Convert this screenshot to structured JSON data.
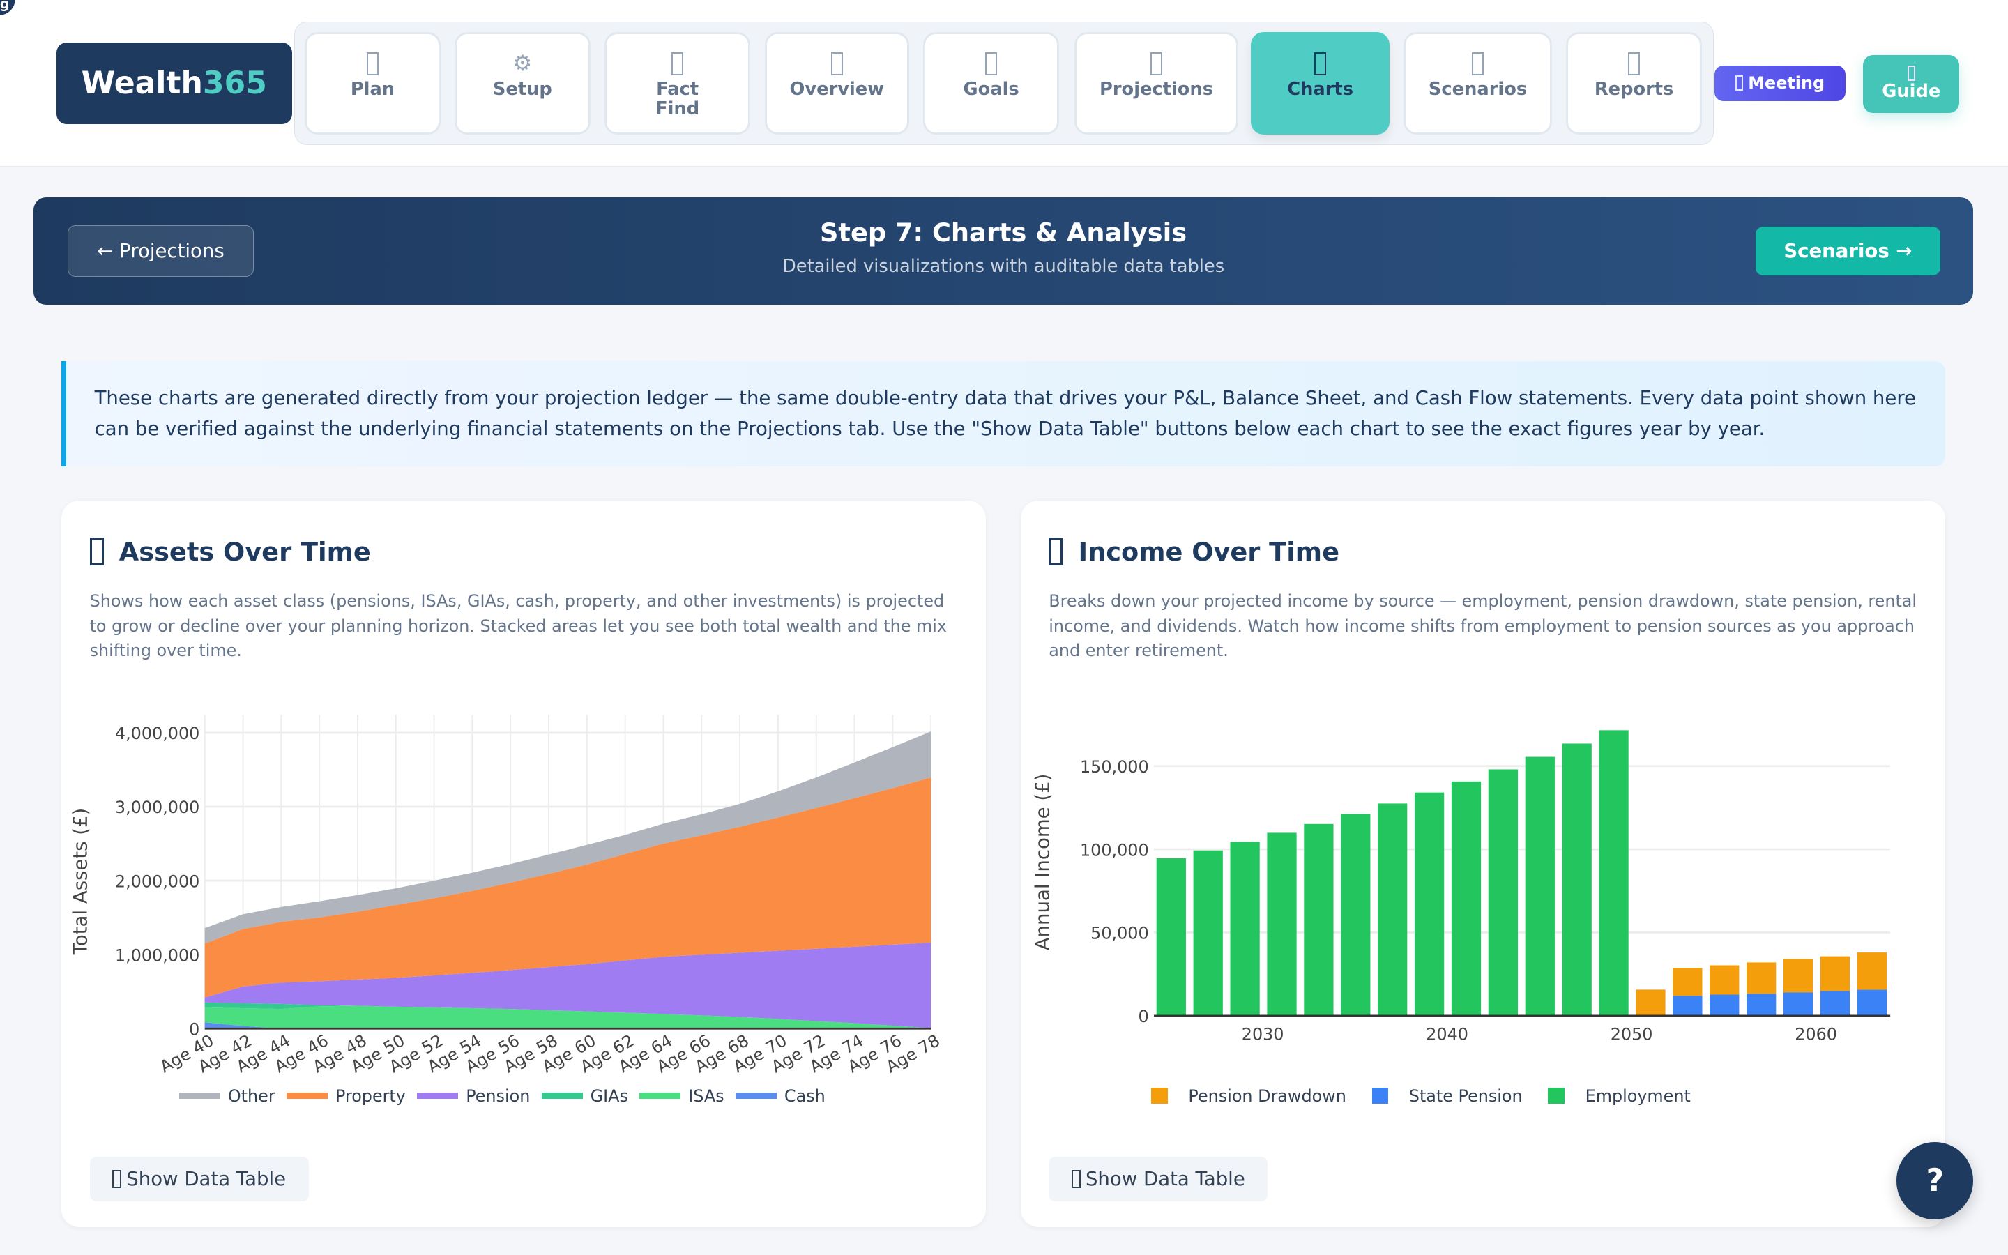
{
  "app": {
    "logo_main": "Wealth",
    "logo_accent": "365",
    "corner_badge": "g"
  },
  "nav": {
    "tabs": [
      {
        "label": "Plan",
        "icon": "missing-glyph"
      },
      {
        "label": "Setup",
        "icon": "gear"
      },
      {
        "label": "Fact Find",
        "icon": "missing-glyph"
      },
      {
        "label": "Overview",
        "icon": "missing-glyph"
      },
      {
        "label": "Goals",
        "icon": "missing-glyph"
      },
      {
        "label": "Projections",
        "icon": "missing-glyph"
      },
      {
        "label": "Charts",
        "icon": "missing-glyph",
        "active": true
      },
      {
        "label": "Scenarios",
        "icon": "missing-glyph"
      },
      {
        "label": "Reports",
        "icon": "missing-glyph"
      }
    ],
    "meeting_label": "Meeting",
    "guide_label": "Guide",
    "gear_glyph": "⚙"
  },
  "banner": {
    "back_label": "← Projections",
    "title": "Step 7: Charts & Analysis",
    "subtitle": "Detailed visualizations with auditable data tables",
    "next_label": "Scenarios →"
  },
  "info": "These charts are generated directly from your projection ledger — the same double-entry data that drives your P&L, Balance Sheet, and Cash Flow statements. Every data point shown here can be verified against the underlying financial statements on the Projections tab. Use the \"Show Data Table\" buttons below each chart to see the exact figures year by year.",
  "cards": {
    "assets": {
      "title": "Assets Over Time",
      "description": "Shows how each asset class (pensions, ISAs, GIAs, cash, property, and other investments) is projected to grow or decline over your planning horizon. Stacked areas let you see both total wealth and the mix shifting over time.",
      "button": "Show Data Table"
    },
    "income": {
      "title": "Income Over Time",
      "description": "Breaks down your projected income by source — employment, pension drawdown, state pension, rental income, and dividends. Watch how income shifts from employment to pension sources as you approach and enter retirement.",
      "button": "Show Data Table"
    }
  },
  "help_label": "?",
  "chart_data": [
    {
      "type": "area",
      "stacked": true,
      "ylabel": "Total Assets (£)",
      "ylim": [
        0,
        4000000
      ],
      "yticks": [
        "0",
        "1,000,000",
        "2,000,000",
        "3,000,000",
        "4,000,000"
      ],
      "grid": true,
      "legend": "bottom",
      "categories": [
        "Age 40",
        "Age 42",
        "Age 44",
        "Age 46",
        "Age 48",
        "Age 50",
        "Age 52",
        "Age 54",
        "Age 56",
        "Age 58",
        "Age 60",
        "Age 62",
        "Age 64",
        "Age 66",
        "Age 68",
        "Age 70",
        "Age 72",
        "Age 74",
        "Age 76",
        "Age 78"
      ],
      "series": [
        {
          "name": "Cash",
          "color": "#5b8def",
          "values": [
            85000,
            35000,
            0,
            0,
            0,
            0,
            0,
            0,
            0,
            0,
            0,
            0,
            0,
            0,
            0,
            0,
            0,
            0,
            0,
            0
          ]
        },
        {
          "name": "ISAs",
          "color": "#4ade80",
          "values": [
            201000,
            241000,
            265000,
            300000,
            309000,
            296000,
            286000,
            276000,
            265000,
            249000,
            232000,
            215000,
            198000,
            178000,
            158000,
            131000,
            101000,
            74000,
            40000,
            7000
          ]
        },
        {
          "name": "GIAs",
          "color": "#34c98e",
          "values": [
            67000,
            67000,
            68000,
            15000,
            0,
            0,
            0,
            0,
            0,
            0,
            0,
            0,
            0,
            0,
            0,
            0,
            0,
            0,
            0,
            0
          ]
        },
        {
          "name": "Pension",
          "color": "#a07cf2",
          "values": [
            67000,
            225000,
            289000,
            324000,
            353000,
            390000,
            433000,
            477000,
            525000,
            581000,
            639000,
            706000,
            773000,
            820000,
            867000,
            921000,
            978000,
            1032000,
            1093000,
            1156000
          ]
        },
        {
          "name": "Property",
          "color": "#fa8c44",
          "values": [
            730000,
            777000,
            820000,
            864000,
            918000,
            985000,
            1042000,
            1109000,
            1183000,
            1261000,
            1347000,
            1439000,
            1530000,
            1614000,
            1704000,
            1802000,
            1903000,
            2010000,
            2117000,
            2232000
          ]
        },
        {
          "name": "Other",
          "color": "#b0b4bd",
          "values": [
            208000,
            201000,
            202000,
            218000,
            225000,
            225000,
            239000,
            246000,
            252000,
            262000,
            266000,
            258000,
            269000,
            285000,
            310000,
            353000,
            413000,
            481000,
            555000,
            622000
          ]
        }
      ],
      "legend_order": [
        "Other",
        "Property",
        "Pension",
        "GIAs",
        "ISAs",
        "Cash"
      ]
    },
    {
      "type": "bar",
      "stacked": true,
      "ylabel": "Annual Income (£)",
      "ylim": [
        0,
        175000
      ],
      "yticks": [
        0,
        50000,
        100000,
        150000
      ],
      "ytick_labels": [
        "0",
        "50,000",
        "100,000",
        "150,000"
      ],
      "xticks": [
        2030,
        2040,
        2050,
        2060
      ],
      "xlim": [
        2024,
        2064
      ],
      "grid": true,
      "legend": "bottom",
      "x": [
        2025,
        2027,
        2029,
        2031,
        2033,
        2035,
        2037,
        2039,
        2041,
        2043,
        2045,
        2047,
        2049,
        2051,
        2053,
        2055,
        2057,
        2059,
        2061,
        2063
      ],
      "series": [
        {
          "name": "State Pension",
          "color": "#3b82f6",
          "values": [
            0,
            0,
            0,
            0,
            0,
            0,
            0,
            0,
            0,
            0,
            0,
            0,
            0,
            0,
            12000,
            12700,
            13200,
            14100,
            14800,
            15700
          ]
        },
        {
          "name": "Pension Drawdown",
          "color": "#f59e0b",
          "values": [
            0,
            0,
            0,
            0,
            0,
            0,
            0,
            0,
            0,
            0,
            0,
            0,
            0,
            15700,
            16700,
            17600,
            18800,
            20000,
            20900,
            22300
          ]
        },
        {
          "name": "Employment",
          "color": "#22c55e",
          "values": [
            94600,
            99300,
            104500,
            109900,
            115200,
            121200,
            127500,
            134100,
            140700,
            148000,
            155500,
            163500,
            171500,
            0,
            0,
            0,
            0,
            0,
            0,
            0
          ]
        }
      ],
      "legend_order": [
        "Pension Drawdown",
        "State Pension",
        "Employment"
      ]
    }
  ]
}
